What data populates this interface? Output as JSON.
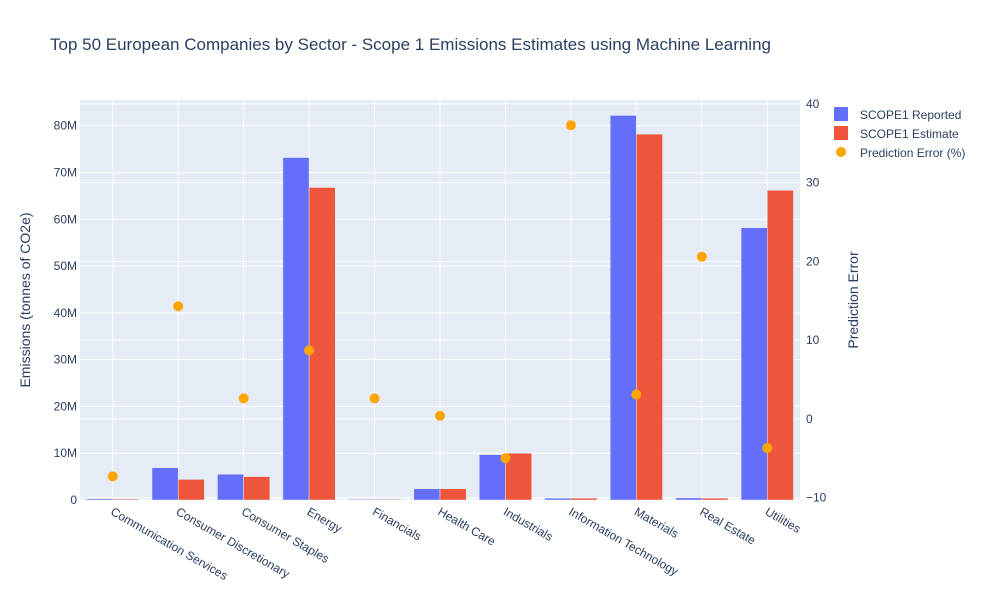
{
  "colors": {
    "reported": "#636efa",
    "estimate": "#ef553b",
    "error": "#ffa500",
    "plot_bg": "#e5ecf6",
    "grid": "#ffffff",
    "text": "#2a3f5f"
  },
  "chart_data": {
    "type": "bar",
    "title": "Top 50 European Companies by Sector - Scope 1 Emissions Estimates using Machine Learning",
    "ylabel": "Emissions (tonnes of CO2e)",
    "y2label": "Prediction Error",
    "ylim": [
      0,
      85500000
    ],
    "y2lim": [
      -10.3,
      40.5
    ],
    "y_ticks": [
      {
        "value": 0,
        "label": "0"
      },
      {
        "value": 10000000,
        "label": "10M"
      },
      {
        "value": 20000000,
        "label": "20M"
      },
      {
        "value": 30000000,
        "label": "30M"
      },
      {
        "value": 40000000,
        "label": "40M"
      },
      {
        "value": 50000000,
        "label": "50M"
      },
      {
        "value": 60000000,
        "label": "60M"
      },
      {
        "value": 70000000,
        "label": "70M"
      },
      {
        "value": 80000000,
        "label": "80M"
      }
    ],
    "y2_ticks": [
      {
        "value": -10,
        "label": "−10"
      },
      {
        "value": 0,
        "label": "0"
      },
      {
        "value": 10,
        "label": "10"
      },
      {
        "value": 20,
        "label": "20"
      },
      {
        "value": 30,
        "label": "30"
      },
      {
        "value": 40,
        "label": "40"
      }
    ],
    "categories": [
      "Communication Services",
      "Consumer Discretionary",
      "Consumer Staples",
      "Energy",
      "Financials",
      "Health Care",
      "Industrials",
      "Information Technology",
      "Materials",
      "Real Estate",
      "Utilities"
    ],
    "series": [
      {
        "name": "SCOPE1 Reported",
        "type": "bar",
        "axis": "y",
        "values": [
          250000,
          6900000,
          5500000,
          73200000,
          150000,
          2400000,
          9700000,
          400000,
          82200000,
          450000,
          58200000
        ]
      },
      {
        "name": "SCOPE1 Estimate",
        "type": "bar",
        "axis": "y",
        "values": [
          200000,
          4400000,
          5000000,
          66800000,
          150000,
          2400000,
          10000000,
          400000,
          78200000,
          400000,
          66200000
        ]
      },
      {
        "name": "Prediction Error (%)",
        "type": "scatter",
        "axis": "y2",
        "values": [
          -7.3,
          14.3,
          2.6,
          8.7,
          2.6,
          0.4,
          -5.0,
          37.3,
          3.1,
          20.6,
          -3.7
        ]
      }
    ],
    "legend_position": "top-right"
  }
}
